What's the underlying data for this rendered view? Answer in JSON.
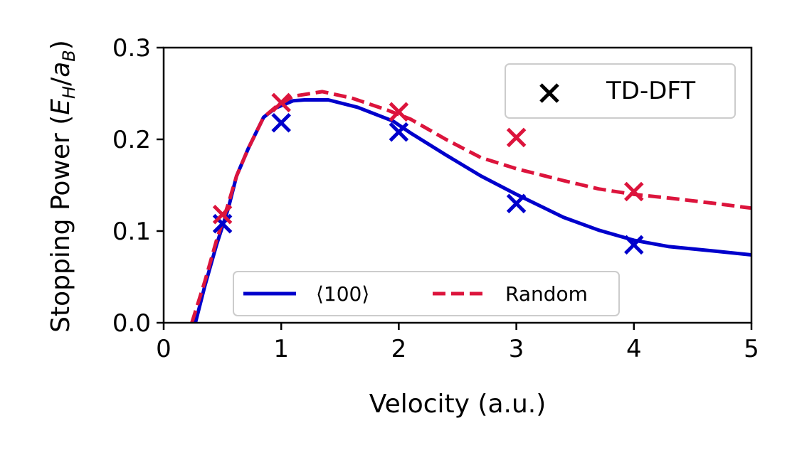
{
  "chart_data": {
    "type": "line",
    "xlabel": "Velocity (a.u.)",
    "ylabel": "Stopping Power (E_H/a_B)",
    "ylabel_parts": {
      "prefix": "Stopping Power (",
      "E": "E",
      "H": "H",
      "slash": "/",
      "a": "a",
      "B": "B",
      "suffix": ")"
    },
    "xlim": [
      0,
      5
    ],
    "ylim": [
      0,
      0.3
    ],
    "xticks": [
      "0",
      "1",
      "2",
      "3",
      "4",
      "5"
    ],
    "yticks": [
      "0.0",
      "0.1",
      "0.2",
      "0.3"
    ],
    "grid": false,
    "series": [
      {
        "name": "⟨100⟩",
        "color": "#0000cc",
        "style": "solid",
        "x": [
          0.27,
          0.35,
          0.45,
          0.55,
          0.62,
          0.72,
          0.85,
          0.95,
          1.1,
          1.2,
          1.4,
          1.65,
          1.95,
          2.1,
          2.4,
          2.7,
          3.0,
          3.4,
          3.7,
          4.0,
          4.3,
          4.7,
          5.0
        ],
        "y": [
          0.0,
          0.04,
          0.085,
          0.125,
          0.16,
          0.19,
          0.224,
          0.234,
          0.242,
          0.243,
          0.243,
          0.235,
          0.22,
          0.207,
          0.183,
          0.16,
          0.14,
          0.115,
          0.101,
          0.09,
          0.083,
          0.078,
          0.074
        ]
      },
      {
        "name": "Random",
        "color": "#dc143c",
        "style": "dashed",
        "x": [
          0.24,
          0.35,
          0.45,
          0.55,
          0.62,
          0.72,
          0.85,
          0.95,
          1.1,
          1.2,
          1.35,
          1.6,
          1.9,
          2.1,
          2.4,
          2.7,
          3.0,
          3.4,
          3.7,
          4.0,
          4.3,
          4.7,
          5.0
        ],
        "y": [
          0.0,
          0.045,
          0.09,
          0.13,
          0.16,
          0.19,
          0.224,
          0.235,
          0.247,
          0.249,
          0.252,
          0.245,
          0.232,
          0.222,
          0.2,
          0.18,
          0.168,
          0.155,
          0.146,
          0.14,
          0.136,
          0.13,
          0.125
        ]
      }
    ],
    "markers": {
      "legend_label": "TD-DFT",
      "points": [
        {
          "group": "100",
          "color": "#0000cc",
          "x": [
            0.5,
            1.0,
            2.0,
            3.0,
            4.0
          ],
          "y": [
            0.108,
            0.218,
            0.208,
            0.13,
            0.085
          ]
        },
        {
          "group": "random",
          "color": "#dc143c",
          "x": [
            0.5,
            1.0,
            2.0,
            3.0,
            4.0
          ],
          "y": [
            0.118,
            0.24,
            0.23,
            0.202,
            0.143
          ]
        }
      ]
    },
    "legends": {
      "markers": {
        "placement": "top-right",
        "entries": [
          "TD-DFT"
        ]
      },
      "lines": {
        "placement": "bottom-center",
        "entries": [
          "⟨100⟩",
          "Random"
        ]
      }
    }
  }
}
